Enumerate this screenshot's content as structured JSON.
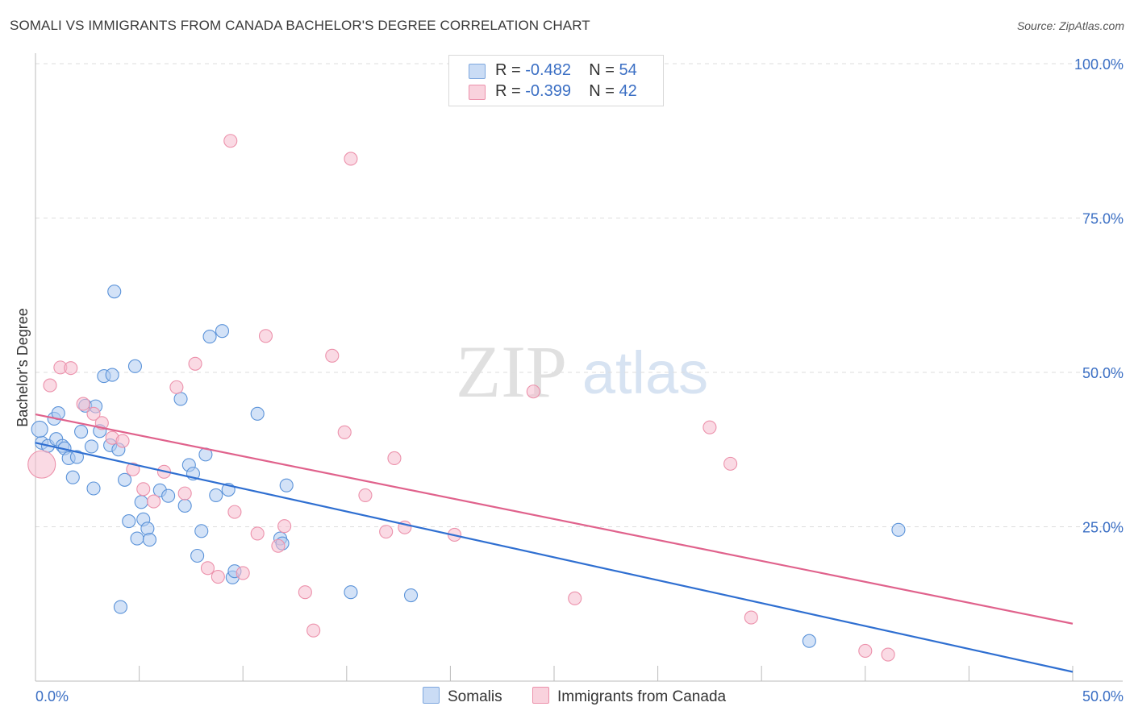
{
  "title": "SOMALI VS IMMIGRANTS FROM CANADA BACHELOR'S DEGREE CORRELATION CHART",
  "source": "Source: ZipAtlas.com",
  "watermark": {
    "zip": "ZIP",
    "atlas": "atlas"
  },
  "legend": {
    "rows": [
      {
        "r_label": "R =",
        "r_value": "-0.482",
        "n_label": "N =",
        "n_value": "54",
        "color": "#aecbf0"
      },
      {
        "r_label": "R =",
        "r_value": "-0.399",
        "n_label": "N =",
        "n_value": "42",
        "color": "#f6bccd"
      }
    ]
  },
  "bottom_legend": [
    {
      "label": "Somalis",
      "color": "#aecbf0"
    },
    {
      "label": "Immigrants from Canada",
      "color": "#f6bccd"
    }
  ],
  "chart_data": {
    "type": "scatter",
    "title": "SOMALI VS IMMIGRANTS FROM CANADA BACHELOR'S DEGREE CORRELATION CHART",
    "xlabel": "",
    "ylabel": "Bachelor's Degree",
    "xlim": [
      0,
      50
    ],
    "ylim": [
      0,
      100
    ],
    "x_tick_labels": [
      "0.0%",
      "50.0%"
    ],
    "y_tick_labels": [
      "25.0%",
      "50.0%",
      "75.0%",
      "100.0%"
    ],
    "y_ticks": [
      25,
      50,
      75,
      100
    ],
    "x_minor_ticks": [
      0,
      5,
      10,
      15,
      20,
      25,
      30,
      35,
      40,
      45,
      50
    ],
    "grid": true,
    "legend_position": "top-center",
    "series": [
      {
        "name": "Somalis",
        "color": "#5b93d9",
        "fill": "#aecbf0",
        "trend": {
          "x": [
            0,
            50
          ],
          "y": [
            38.6,
            1.5
          ],
          "color": "#2f6fd1"
        },
        "points": [
          [
            0.3,
            38.6
          ],
          [
            0.6,
            38.1
          ],
          [
            0.9,
            42.5
          ],
          [
            1.0,
            39.2
          ],
          [
            1.1,
            43.4
          ],
          [
            1.3,
            38.1
          ],
          [
            1.4,
            37.7
          ],
          [
            1.6,
            36.1
          ],
          [
            1.8,
            33.0
          ],
          [
            2.0,
            36.3
          ],
          [
            2.2,
            40.4
          ],
          [
            2.4,
            44.6
          ],
          [
            2.7,
            38.0
          ],
          [
            2.8,
            31.2
          ],
          [
            2.9,
            44.5
          ],
          [
            3.1,
            40.5
          ],
          [
            3.3,
            49.4
          ],
          [
            3.6,
            38.2
          ],
          [
            3.7,
            49.6
          ],
          [
            3.8,
            63.1
          ],
          [
            4.0,
            37.5
          ],
          [
            4.1,
            12.0
          ],
          [
            4.3,
            32.6
          ],
          [
            4.5,
            25.9
          ],
          [
            4.8,
            51.0
          ],
          [
            4.9,
            23.1
          ],
          [
            5.1,
            29.0
          ],
          [
            5.2,
            26.2
          ],
          [
            5.4,
            24.7
          ],
          [
            5.5,
            22.9
          ],
          [
            6.0,
            30.9
          ],
          [
            6.4,
            30.0
          ],
          [
            7.0,
            45.7
          ],
          [
            7.2,
            28.4
          ],
          [
            7.4,
            35.0
          ],
          [
            7.6,
            33.6
          ],
          [
            7.8,
            20.3
          ],
          [
            8.0,
            24.3
          ],
          [
            8.2,
            36.7
          ],
          [
            8.4,
            55.8
          ],
          [
            8.7,
            30.1
          ],
          [
            9.0,
            56.7
          ],
          [
            9.3,
            31.0
          ],
          [
            9.5,
            16.8
          ],
          [
            9.6,
            17.8
          ],
          [
            10.7,
            43.3
          ],
          [
            11.8,
            23.1
          ],
          [
            11.9,
            22.3
          ],
          [
            12.1,
            31.7
          ],
          [
            15.2,
            14.4
          ],
          [
            18.1,
            13.9
          ],
          [
            37.3,
            6.5
          ],
          [
            41.6,
            24.5
          ],
          [
            0.2,
            40.8
          ]
        ],
        "sizes": {
          "0.2": 22
        }
      },
      {
        "name": "Immigrants from Canada",
        "color": "#ec91ab",
        "fill": "#f6bccd",
        "trend": {
          "x": [
            0,
            50
          ],
          "y": [
            43.2,
            9.3
          ],
          "color": "#e0628c"
        },
        "points": [
          [
            0.3,
            35.1
          ],
          [
            0.7,
            47.9
          ],
          [
            1.2,
            50.8
          ],
          [
            1.7,
            50.7
          ],
          [
            2.3,
            44.9
          ],
          [
            2.8,
            43.3
          ],
          [
            3.2,
            41.8
          ],
          [
            3.7,
            39.4
          ],
          [
            4.2,
            38.9
          ],
          [
            4.7,
            34.3
          ],
          [
            5.2,
            31.1
          ],
          [
            5.7,
            29.1
          ],
          [
            6.2,
            33.9
          ],
          [
            6.8,
            47.6
          ],
          [
            7.2,
            30.4
          ],
          [
            7.7,
            51.4
          ],
          [
            8.3,
            18.3
          ],
          [
            8.8,
            16.9
          ],
          [
            9.4,
            87.5
          ],
          [
            9.6,
            27.4
          ],
          [
            10.0,
            17.5
          ],
          [
            10.7,
            23.9
          ],
          [
            11.1,
            55.9
          ],
          [
            11.7,
            21.9
          ],
          [
            12.0,
            25.1
          ],
          [
            13.0,
            14.4
          ],
          [
            13.4,
            8.2
          ],
          [
            14.3,
            52.7
          ],
          [
            14.9,
            40.3
          ],
          [
            15.2,
            84.6
          ],
          [
            15.9,
            30.1
          ],
          [
            16.9,
            24.2
          ],
          [
            17.3,
            36.1
          ],
          [
            17.8,
            24.9
          ],
          [
            20.2,
            23.7
          ],
          [
            24.0,
            46.9
          ],
          [
            26.0,
            13.4
          ],
          [
            32.5,
            41.1
          ],
          [
            33.5,
            35.2
          ],
          [
            34.5,
            10.3
          ],
          [
            40.0,
            4.9
          ],
          [
            41.1,
            4.3
          ]
        ]
      }
    ]
  }
}
